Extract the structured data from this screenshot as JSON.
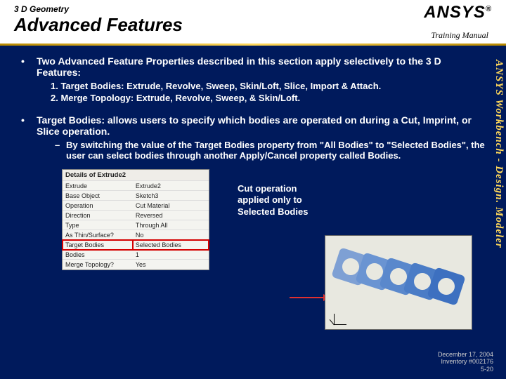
{
  "header": {
    "subtitle": "3 D Geometry",
    "title": "Advanced Features",
    "logo": "ANSYS",
    "logo_mark": "®",
    "tag": "Training Manual"
  },
  "side_text": "ANSYS Workbench - Design. Modeler",
  "bullets": {
    "b1": "Two Advanced Feature Properties described in this section apply selectively to the 3 D Features:",
    "b1_subs": [
      "1.  Target Bodies: Extrude, Revolve, Sweep, Skin/Loft, Slice, Import & Attach.",
      "2.  Merge Topology: Extrude, Revolve, Sweep, & Skin/Loft."
    ],
    "b2": "Target Bodies: allows users to specify which bodies are operated on during a Cut, Imprint, or Slice operation.",
    "b2_dash": "By switching the value of the Target Bodies property from \"All Bodies\" to \"Selected Bodies\", the user can select bodies through another Apply/Cancel property called Bodies."
  },
  "table": {
    "title": "Details of Extrude2",
    "rows": [
      [
        "Extrude",
        "Extrude2"
      ],
      [
        "Base Object",
        "Sketch3"
      ],
      [
        "Operation",
        "Cut Material"
      ],
      [
        "Direction",
        "Reversed"
      ],
      [
        "Type",
        "Through All"
      ],
      [
        "As Thin/Surface?",
        "No"
      ],
      [
        "Target Bodies",
        "Selected Bodies"
      ],
      [
        "Bodies",
        "1"
      ],
      [
        "Merge Topology?",
        "Yes"
      ]
    ],
    "highlight_row_index": 6
  },
  "callout": "Cut operation applied only to Selected Bodies",
  "picture": {
    "background_color": "#e8e8e0",
    "shape_colors": [
      "#7ea0d4",
      "#6a94d2",
      "#5a88cc",
      "#4a7cc6",
      "#3d70c0"
    ],
    "arrow_color": "#e03030"
  },
  "footer": {
    "date": "December 17, 2004",
    "inv": "Inventory #002176",
    "page": "5-20"
  },
  "colors": {
    "page_bg": "#001a5c",
    "gold": "#ffd85a",
    "highlight": "#d40000"
  }
}
